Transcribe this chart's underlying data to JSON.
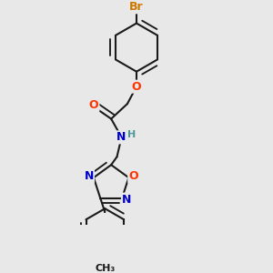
{
  "bg_color": "#e8e8e8",
  "bond_color": "#1a1a1a",
  "bond_width": 1.5,
  "atom_colors": {
    "O": "#ff3300",
    "N": "#0000cc",
    "Br": "#cc7700",
    "C": "#1a1a1a",
    "H": "#4a9999"
  },
  "font_size": 9,
  "fig_size": [
    3.0,
    3.0
  ],
  "dpi": 100
}
